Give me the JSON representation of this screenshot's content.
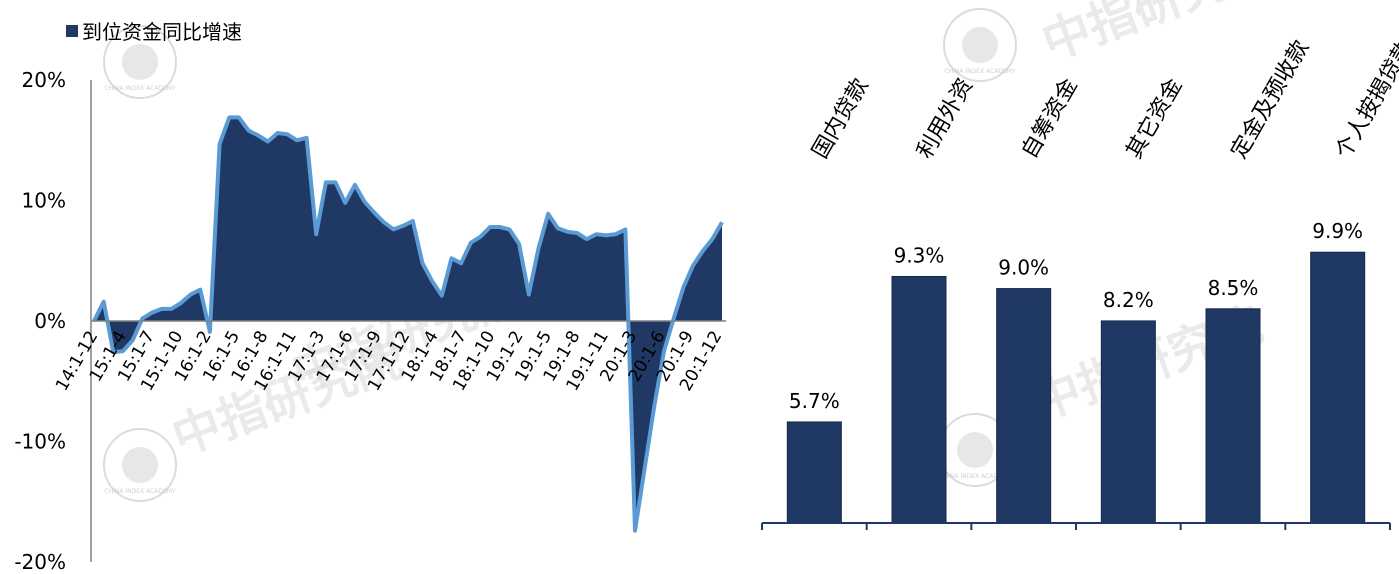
{
  "colors": {
    "fill": "#203864",
    "line": "#5b9bd5",
    "bar": "#203864",
    "axis": "#000000",
    "watermark": "#d9d9d9"
  },
  "watermark": {
    "text": "中指研究院",
    "seal_text": "CHINA INDEX ACADEMY"
  },
  "chart_data": [
    {
      "type": "area",
      "legend": [
        "到位资金同比增速"
      ],
      "legend_position": "top-left",
      "y_ticks": [
        "20%",
        "10%",
        "0%",
        "-10%",
        "-20%"
      ],
      "ylim": [
        -20,
        20
      ],
      "x_tick_labels": [
        "14:1-12",
        "15:1-4",
        "15:1-7",
        "15:1-10",
        "16:1-2",
        "16:1-5",
        "16:1-8",
        "16:1-11",
        "17:1-3",
        "17:1-6",
        "17:1-9",
        "17:1-12",
        "18:1-4",
        "18:1-7",
        "18:1-10",
        "19:1-2",
        "19:1-5",
        "19:1-8",
        "19:1-11",
        "20:1-3",
        "20:1-6",
        "20:1-9",
        "20:1-12"
      ],
      "series": [
        {
          "name": "到位资金同比增速",
          "values": [
            0.0,
            1.6,
            -2.6,
            -2.5,
            -1.6,
            0.2,
            0.7,
            1.0,
            1.0,
            1.5,
            2.2,
            2.6,
            -0.9,
            14.7,
            16.9,
            16.9,
            15.8,
            15.4,
            14.9,
            15.6,
            15.5,
            15.0,
            15.2,
            7.2,
            11.5,
            11.5,
            9.8,
            11.3,
            9.9,
            9.0,
            8.2,
            7.6,
            7.9,
            8.3,
            4.8,
            3.3,
            2.1,
            5.2,
            4.8,
            6.5,
            7.0,
            7.8,
            7.8,
            7.6,
            6.4,
            2.2,
            6.0,
            8.9,
            7.7,
            7.4,
            7.3,
            6.8,
            7.2,
            7.1,
            7.2,
            7.6,
            -17.4,
            -12.2,
            -7.0,
            -2.5,
            0.2,
            2.8,
            4.6,
            5.8,
            6.8,
            8.2
          ]
        }
      ],
      "grid": false
    },
    {
      "type": "bar",
      "categories": [
        "国内贷款",
        "利用外资",
        "自筹资金",
        "其它资金",
        "定金及预收款",
        "个人按揭贷款"
      ],
      "values": [
        5.7,
        9.3,
        9.0,
        8.2,
        8.5,
        9.9
      ],
      "data_labels": [
        "5.7%",
        "9.3%",
        "9.0%",
        "8.2%",
        "8.5%",
        "9.9%"
      ],
      "ylim": [
        3.2,
        10.4
      ],
      "grid": false
    }
  ]
}
